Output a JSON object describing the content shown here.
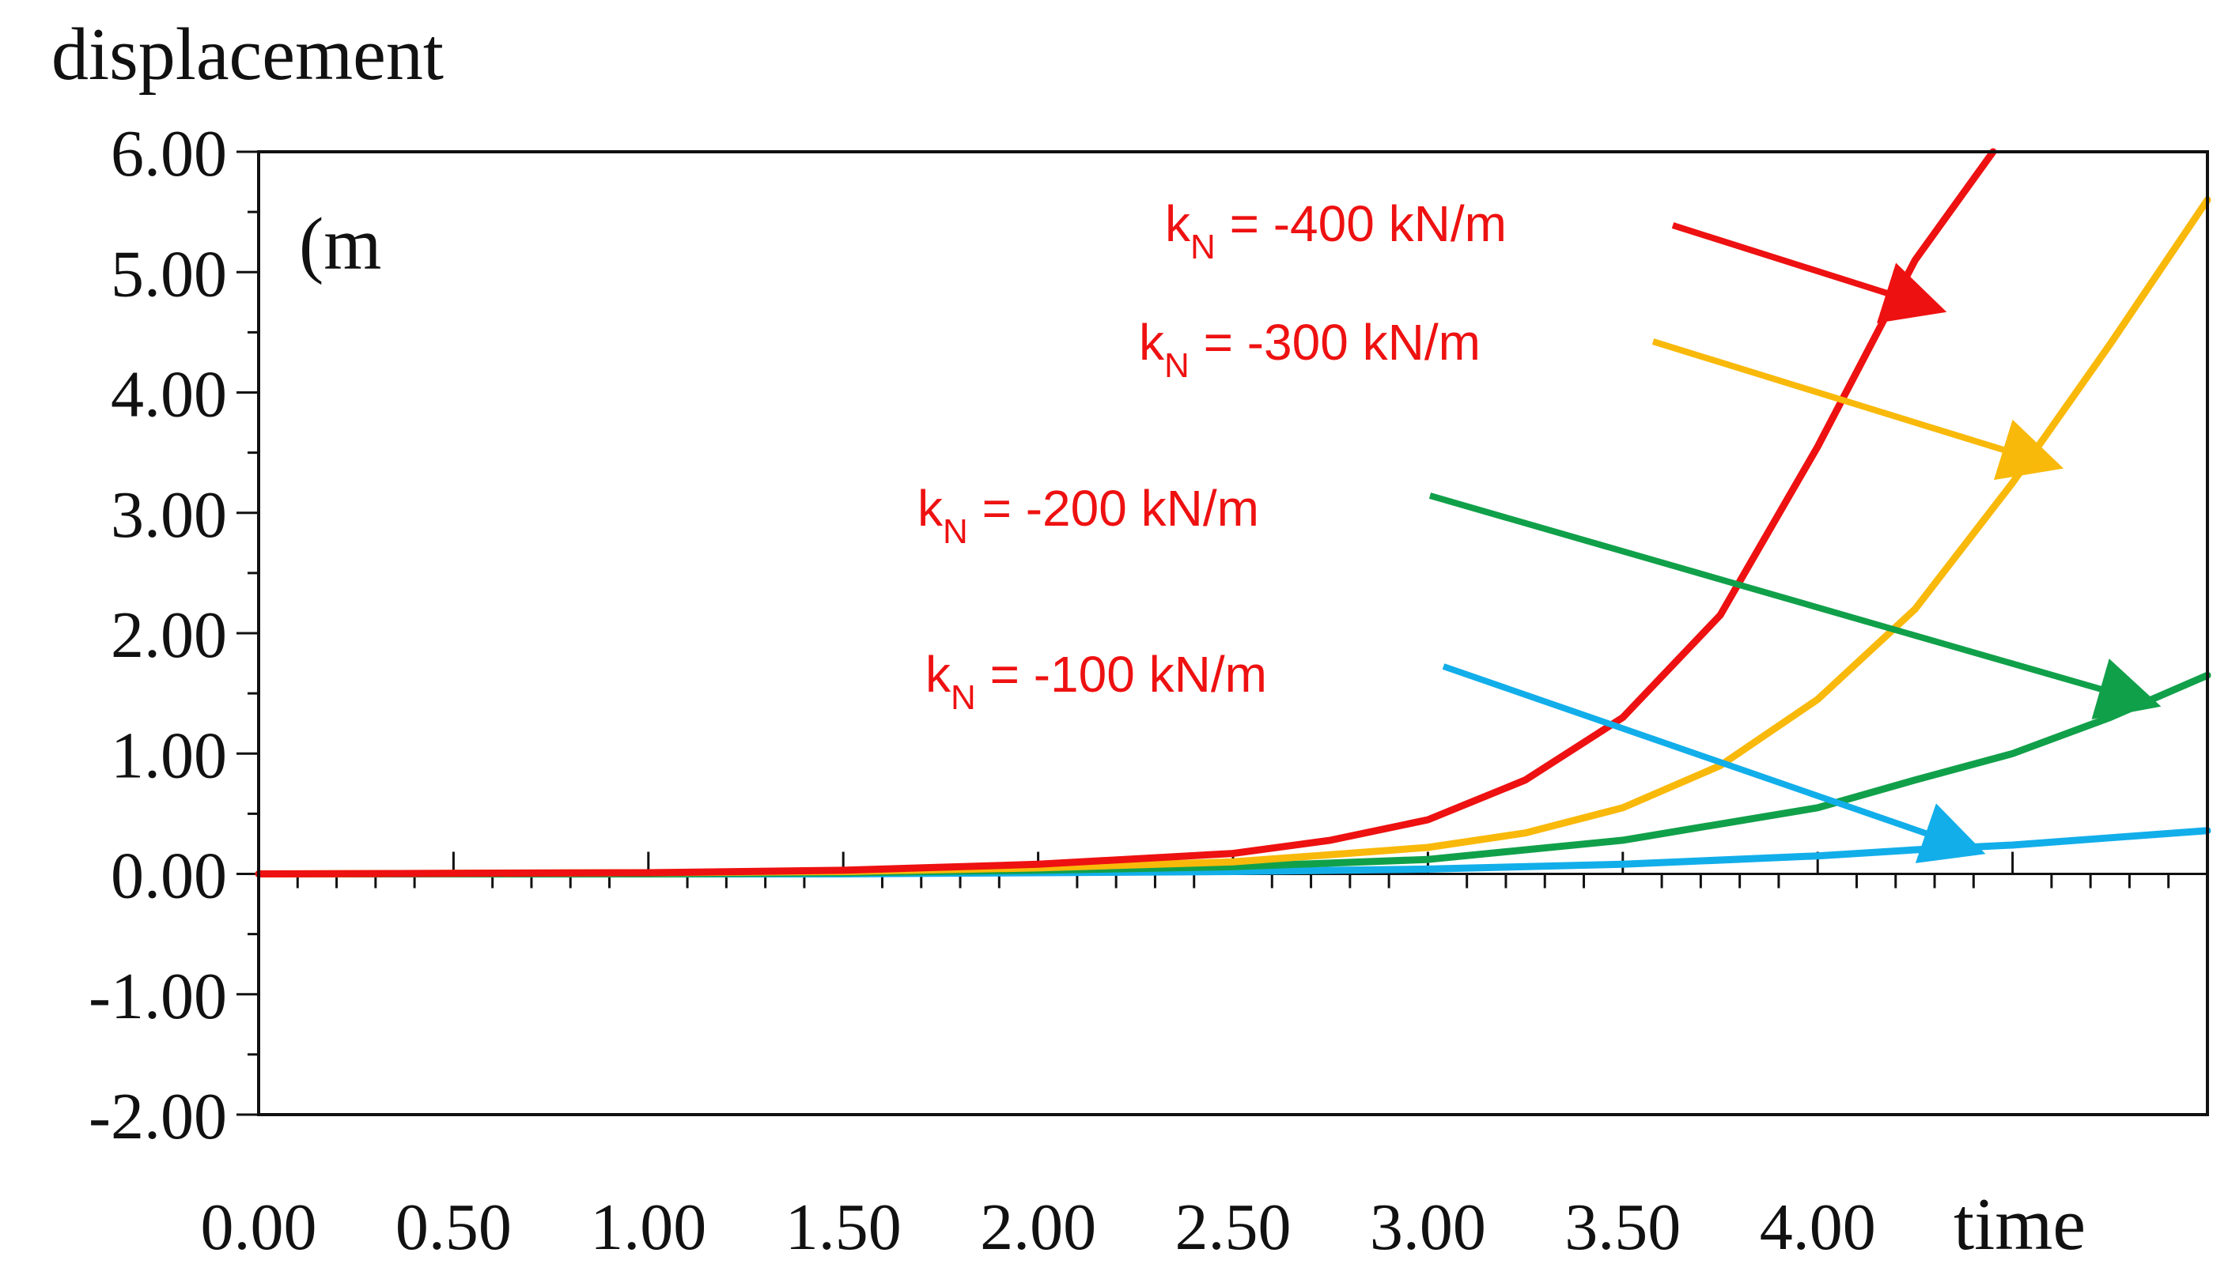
{
  "chart_data": {
    "type": "line",
    "ylabel": "displacement",
    "unit_label": "(m",
    "xlabel": "time",
    "xlim": [
      0,
      5.0
    ],
    "ylim": [
      -2,
      6
    ],
    "x_tick_labels": [
      "0.00",
      "0.50",
      "1.00",
      "1.50",
      "2.00",
      "2.50",
      "3.00",
      "3.50",
      "4.00"
    ],
    "x_tick_values": [
      0,
      0.5,
      1.0,
      1.5,
      2.0,
      2.5,
      3.0,
      3.5,
      4.0
    ],
    "y_tick_labels": [
      "6.00",
      "5.00",
      "4.00",
      "3.00",
      "2.00",
      "1.00",
      "0.00",
      "-1.00",
      "-2.00"
    ],
    "y_tick_values": [
      6,
      5,
      4,
      3,
      2,
      1,
      0,
      -1,
      -2
    ],
    "series": [
      {
        "name": "kN = -400 kN/m",
        "color": "#ee1111",
        "x": [
          0,
          1.0,
          1.5,
          2.0,
          2.5,
          2.75,
          3.0,
          3.25,
          3.5,
          3.75,
          4.0,
          4.25,
          4.45
        ],
        "y": [
          0,
          0.01,
          0.03,
          0.08,
          0.17,
          0.28,
          0.45,
          0.78,
          1.3,
          2.15,
          3.55,
          5.1,
          6.0
        ]
      },
      {
        "name": "kN = -300 kN/m",
        "color": "#f9b90a",
        "x": [
          0,
          1.0,
          1.5,
          2.0,
          2.5,
          3.0,
          3.25,
          3.5,
          3.75,
          4.0,
          4.25,
          4.5,
          4.75,
          5.0
        ],
        "y": [
          0,
          0.01,
          0.02,
          0.05,
          0.1,
          0.22,
          0.34,
          0.55,
          0.9,
          1.45,
          2.2,
          3.25,
          4.4,
          5.6
        ]
      },
      {
        "name": "kN = -200 kN/m",
        "color": "#11a04a",
        "x": [
          0,
          1.0,
          1.5,
          2.0,
          2.5,
          3.0,
          3.5,
          4.0,
          4.25,
          4.5,
          4.75,
          5.0
        ],
        "y": [
          0,
          0.0,
          0.01,
          0.03,
          0.06,
          0.12,
          0.28,
          0.55,
          0.78,
          1.0,
          1.3,
          1.65
        ]
      },
      {
        "name": "kN = -100 kN/m",
        "color": "#12aeea",
        "x": [
          0,
          1.0,
          1.5,
          2.0,
          2.5,
          3.0,
          3.5,
          4.0,
          4.25,
          4.5,
          4.75,
          5.0
        ],
        "y": [
          0,
          0.0,
          0.0,
          0.01,
          0.02,
          0.04,
          0.08,
          0.15,
          0.2,
          0.24,
          0.3,
          0.36
        ]
      }
    ],
    "annotations": [
      {
        "k": "k",
        "sub": "N",
        "rest": " = -400 kN/m",
        "series": 0,
        "target_x": 4.3,
        "target_y": 4.7,
        "color": "#ee1111",
        "arrow_color": "#ee1111"
      },
      {
        "k": "k",
        "sub": "N",
        "rest": " = -300 kN/m",
        "series": 1,
        "target_x": 4.6,
        "target_y": 3.4,
        "color": "#ee1111",
        "arrow_color": "#f9b90a"
      },
      {
        "k": "k",
        "sub": "N",
        "rest": " = -200 kN/m",
        "series": 2,
        "target_x": 4.85,
        "target_y": 1.42,
        "color": "#ee1111",
        "arrow_color": "#11a04a"
      },
      {
        "k": "k",
        "sub": "N",
        "rest": " = -100 kN/m",
        "series": 3,
        "target_x": 4.4,
        "target_y": 0.2,
        "color": "#ee1111",
        "arrow_color": "#12aeea"
      }
    ]
  }
}
